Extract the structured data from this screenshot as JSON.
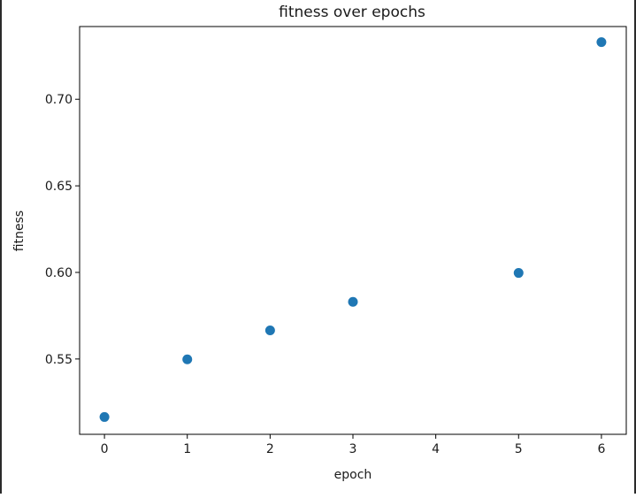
{
  "chart_data": {
    "type": "scatter",
    "title": "fitness over epochs",
    "xlabel": "epoch",
    "ylabel": "fitness",
    "x": [
      0,
      1,
      2,
      3,
      5,
      6
    ],
    "y": [
      0.5165,
      0.5498,
      0.5665,
      0.583,
      0.5997,
      0.733
    ],
    "xlim": [
      -0.3,
      6.3
    ],
    "ylim": [
      0.5065,
      0.742
    ],
    "xticks": [
      0,
      1,
      2,
      3,
      4,
      5,
      6
    ],
    "xtick_labels": [
      "0",
      "1",
      "2",
      "3",
      "4",
      "5",
      "6"
    ],
    "yticks": [
      0.55,
      0.6,
      0.65,
      0.7
    ],
    "ytick_labels": [
      "0.55",
      "0.60",
      "0.65",
      "0.70"
    ],
    "grid": false,
    "marker_color": "#1f77b4"
  }
}
